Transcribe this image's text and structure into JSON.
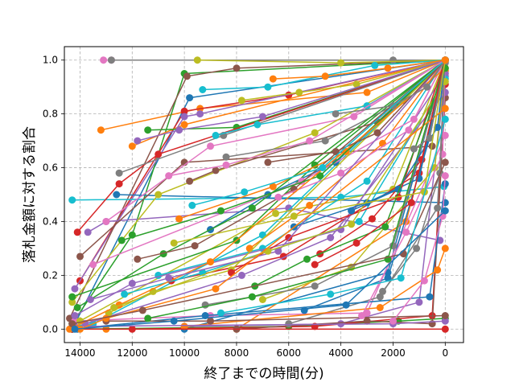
{
  "chart_data": {
    "type": "line",
    "title": "",
    "xlabel": "終了までの時間(分)",
    "ylabel": "落札金額に対する割合",
    "xlim": [
      14600,
      -700
    ],
    "ylim": [
      -0.05,
      1.05
    ],
    "x_inverted": true,
    "grid": true,
    "grid_style": "dashed",
    "legend": "none",
    "marker": "circle",
    "x_ticks": [
      14000,
      12000,
      10000,
      8000,
      6000,
      4000,
      2000,
      0
    ],
    "x_tick_labels": [
      "14000",
      "12000",
      "10000",
      "8000",
      "6000",
      "4000",
      "2000",
      "0"
    ],
    "y_ticks": [
      0.0,
      0.2,
      0.4,
      0.6,
      0.8,
      1.0
    ],
    "y_tick_labels": [
      "0.0",
      "0.2",
      "0.4",
      "0.6",
      "0.8",
      "1.0"
    ],
    "palette": [
      "#1f77b4",
      "#ff7f0e",
      "#2ca02c",
      "#d62728",
      "#9467bd",
      "#8c564b",
      "#e377c2",
      "#7f7f7f",
      "#bcbd22",
      "#17becf"
    ],
    "series": [
      {
        "x": [
          14300,
          9800,
          0
        ],
        "y": [
          0.0,
          0.86,
          1.0
        ]
      },
      {
        "x": [
          13200,
          9400,
          3000,
          0
        ],
        "y": [
          0.74,
          0.82,
          0.88,
          1.0
        ]
      },
      {
        "x": [
          14300,
          12000,
          10000,
          0
        ],
        "y": [
          0.02,
          0.35,
          0.95,
          1.0
        ]
      },
      {
        "x": [
          14000,
          10000,
          6000,
          0
        ],
        "y": [
          0.18,
          0.81,
          0.87,
          1.0
        ]
      },
      {
        "x": [
          14200,
          10000,
          9400,
          0
        ],
        "y": [
          0.15,
          0.79,
          0.8,
          1.0
        ]
      },
      {
        "x": [
          14400,
          9900,
          8000,
          0
        ],
        "y": [
          0.04,
          0.94,
          0.97,
          1.0
        ]
      },
      {
        "x": [
          13100,
          12800,
          0
        ],
        "y": [
          1.0,
          1.0,
          1.0
        ]
      },
      {
        "x": [
          12800,
          2000,
          0
        ],
        "y": [
          1.0,
          1.0,
          1.0
        ]
      },
      {
        "x": [
          9500,
          4000,
          0
        ],
        "y": [
          1.0,
          0.99,
          1.0
        ]
      },
      {
        "x": [
          14300,
          4000,
          50
        ],
        "y": [
          0.48,
          0.49,
          0.53
        ]
      },
      {
        "x": [
          12600,
          0
        ],
        "y": [
          0.5,
          0.47
        ]
      },
      {
        "x": [
          12000,
          10000,
          0
        ],
        "y": [
          0.68,
          0.76,
          1.0
        ]
      },
      {
        "x": [
          11400,
          8000,
          0
        ],
        "y": [
          0.74,
          0.75,
          1.0
        ]
      },
      {
        "x": [
          14100,
          12500,
          11000,
          0
        ],
        "y": [
          0.36,
          0.54,
          0.65,
          1.0
        ]
      },
      {
        "x": [
          13700,
          13000,
          6000,
          200
        ],
        "y": [
          0.36,
          0.4,
          0.45,
          0.33
        ]
      },
      {
        "x": [
          14000,
          10000,
          500
        ],
        "y": [
          0.27,
          0.62,
          0.68
        ]
      },
      {
        "x": [
          13000,
          9000,
          3500,
          0
        ],
        "y": [
          0.4,
          0.68,
          0.79,
          1.0
        ]
      },
      {
        "x": [
          12500,
          8500,
          0
        ],
        "y": [
          0.58,
          0.72,
          1.0
        ]
      },
      {
        "x": [
          14300,
          11000,
          5000,
          0
        ],
        "y": [
          0.1,
          0.5,
          0.73,
          1.0
        ]
      },
      {
        "x": [
          14300,
          13500,
          7000,
          0
        ],
        "y": [
          0.01,
          0.02,
          0.35,
          1.0
        ]
      },
      {
        "x": [
          14100,
          10000,
          2200,
          0
        ],
        "y": [
          0.0,
          0.0,
          0.21,
          1.0
        ]
      },
      {
        "x": [
          13000,
          8000,
          1500,
          0
        ],
        "y": [
          0.0,
          0.0,
          0.4,
          0.96
        ]
      },
      {
        "x": [
          14300,
          6000,
          1800,
          0
        ],
        "y": [
          0.0,
          0.01,
          0.03,
          0.04
        ]
      },
      {
        "x": [
          12000,
          5000,
          500,
          0
        ],
        "y": [
          0.0,
          0.01,
          0.05,
          0.91
        ]
      },
      {
        "x": [
          10000,
          4000,
          1000,
          0
        ],
        "y": [
          0.01,
          0.02,
          0.1,
          0.94
        ]
      },
      {
        "x": [
          8000,
          3000,
          500,
          0
        ],
        "y": [
          0.0,
          0.03,
          0.02,
          0.86
        ]
      },
      {
        "x": [
          14200,
          9000,
          3000,
          0
        ],
        "y": [
          0.03,
          0.05,
          0.06,
          0.72
        ]
      },
      {
        "x": [
          6000,
          2500,
          300,
          0
        ],
        "y": [
          0.02,
          0.12,
          0.45,
          1.0
        ]
      },
      {
        "x": [
          14000,
          6500,
          2000,
          0
        ],
        "y": [
          0.03,
          0.43,
          0.52,
          1.0
        ]
      },
      {
        "x": [
          11000,
          7000,
          3000,
          0
        ],
        "y": [
          0.2,
          0.3,
          0.55,
          1.0
        ]
      },
      {
        "x": [
          9000,
          6800,
          4200,
          0
        ],
        "y": [
          0.37,
          0.5,
          0.62,
          1.0
        ]
      },
      {
        "x": [
          7500,
          5200,
          2400,
          0
        ],
        "y": [
          0.3,
          0.46,
          0.69,
          1.0
        ]
      },
      {
        "x": [
          14300,
          8000,
          5000,
          0
        ],
        "y": [
          0.12,
          0.33,
          0.61,
          1.0
        ]
      },
      {
        "x": [
          10500,
          6200,
          1000,
          0
        ],
        "y": [
          0.18,
          0.27,
          0.58,
          1.0
        ]
      },
      {
        "x": [
          14200,
          12000,
          4000,
          0
        ],
        "y": [
          0.05,
          0.17,
          0.37,
          0.95
        ]
      },
      {
        "x": [
          9800,
          8800,
          2600,
          0
        ],
        "y": [
          0.55,
          0.59,
          0.77,
          1.0
        ]
      },
      {
        "x": [
          13500,
          5500,
          1200,
          0
        ],
        "y": [
          0.24,
          0.55,
          0.78,
          1.0
        ]
      },
      {
        "x": [
          8400,
          4600,
          1600,
          0
        ],
        "y": [
          0.64,
          0.7,
          0.85,
          1.0
        ]
      },
      {
        "x": [
          7000,
          3600,
          400,
          0
        ],
        "y": [
          0.11,
          0.23,
          0.6,
          1.0
        ]
      },
      {
        "x": [
          12300,
          9300,
          3300,
          0
        ],
        "y": [
          0.13,
          0.21,
          0.4,
          0.93
        ]
      },
      {
        "x": [
          5400,
          2200,
          600,
          0
        ],
        "y": [
          0.07,
          0.19,
          0.71,
          1.0
        ]
      },
      {
        "x": [
          10200,
          6600,
          3800,
          0
        ],
        "y": [
          0.41,
          0.53,
          0.66,
          1.0
        ]
      },
      {
        "x": [
          14100,
          10800,
          7400,
          0
        ],
        "y": [
          0.08,
          0.28,
          0.45,
          1.0
        ]
      },
      {
        "x": [
          4800,
          2800,
          900,
          0
        ],
        "y": [
          0.28,
          0.41,
          0.63,
          1.0
        ]
      },
      {
        "x": [
          13800,
          7800,
          4400,
          0
        ],
        "y": [
          0.02,
          0.2,
          0.34,
          0.88
        ]
      },
      {
        "x": [
          11800,
          9600,
          5800,
          0
        ],
        "y": [
          0.26,
          0.31,
          0.52,
          1.0
        ]
      },
      {
        "x": [
          6400,
          4000,
          1400,
          0
        ],
        "y": [
          0.49,
          0.58,
          0.74,
          1.0
        ]
      },
      {
        "x": [
          9200,
          5000,
          2000,
          0
        ],
        "y": [
          0.09,
          0.16,
          0.31,
          0.99
        ]
      },
      {
        "x": [
          12900,
          11200,
          8200,
          0
        ],
        "y": [
          0.06,
          0.14,
          0.22,
          1.0
        ]
      },
      {
        "x": [
          8800,
          7200,
          3000,
          0
        ],
        "y": [
          0.72,
          0.76,
          0.83,
          1.0
        ]
      },
      {
        "x": [
          14300,
          9200,
          600,
          0
        ],
        "y": [
          0.0,
          0.05,
          0.12,
          0.54
        ]
      },
      {
        "x": [
          10000,
          2500,
          300,
          0
        ],
        "y": [
          0.01,
          0.08,
          0.22,
          0.3
        ]
      },
      {
        "x": [
          12400,
          8600,
          4800,
          0
        ],
        "y": [
          0.33,
          0.44,
          0.57,
          1.0
        ]
      },
      {
        "x": [
          14300,
          0
        ],
        "y": [
          0.0,
          0.0
        ]
      },
      {
        "x": [
          14200,
          2000,
          0
        ],
        "y": [
          0.01,
          0.02,
          0.03
        ]
      },
      {
        "x": [
          13000,
          9000,
          0
        ],
        "y": [
          0.03,
          0.03,
          0.05
        ]
      },
      {
        "x": [
          3200,
          1500,
          100,
          0
        ],
        "y": [
          0.05,
          0.36,
          0.65,
          1.0
        ]
      },
      {
        "x": [
          2400,
          1100,
          200,
          0
        ],
        "y": [
          0.14,
          0.3,
          0.58,
          1.0
        ]
      },
      {
        "x": [
          7800,
          5600,
          3400,
          0
        ],
        "y": [
          0.85,
          0.88,
          0.91,
          1.0
        ]
      },
      {
        "x": [
          9300,
          6800,
          2700,
          0
        ],
        "y": [
          0.89,
          0.9,
          0.98,
          1.0
        ]
      },
      {
        "x": [
          5800,
          3000,
          1000,
          0
        ],
        "y": [
          0.38,
          0.47,
          0.56,
          1.0
        ]
      },
      {
        "x": [
          14400,
          12500,
          9000,
          0
        ],
        "y": [
          0.0,
          0.09,
          0.25,
          0.97
        ]
      },
      {
        "x": [
          11400,
          7400,
          2200,
          0
        ],
        "y": [
          0.04,
          0.12,
          0.26,
          1.0
        ]
      },
      {
        "x": [
          8200,
          6000,
          1800,
          0
        ],
        "y": [
          0.21,
          0.34,
          0.49,
          1.0
        ]
      },
      {
        "x": [
          13600,
          10600,
          6400,
          0
        ],
        "y": [
          0.11,
          0.19,
          0.29,
          1.0
        ]
      },
      {
        "x": [
          6800,
          4200,
          2600,
          0
        ],
        "y": [
          0.62,
          0.66,
          0.73,
          1.0
        ]
      },
      {
        "x": [
          10600,
          8400,
          5200,
          0
        ],
        "y": [
          0.57,
          0.61,
          0.7,
          1.0
        ]
      },
      {
        "x": [
          4200,
          2000,
          700,
          0
        ],
        "y": [
          0.8,
          0.83,
          0.9,
          1.0
        ]
      },
      {
        "x": [
          12700,
          6800,
          3600,
          0
        ],
        "y": [
          0.08,
          0.29,
          0.39,
          0.92
        ]
      },
      {
        "x": [
          9700,
          7700,
          4700,
          0
        ],
        "y": [
          0.46,
          0.51,
          0.6,
          1.0
        ]
      },
      {
        "x": [
          3600,
          1800,
          300,
          0
        ],
        "y": [
          0.44,
          0.52,
          0.75,
          1.0
        ]
      },
      {
        "x": [
          14000,
          13000,
          8800,
          0
        ],
        "y": [
          0.0,
          0.04,
          0.15,
          0.82
        ]
      },
      {
        "x": [
          7300,
          5300,
          2300,
          0
        ],
        "y": [
          0.16,
          0.26,
          0.38,
          0.97
        ]
      },
      {
        "x": [
          5000,
          3400,
          1300,
          0
        ],
        "y": [
          0.24,
          0.32,
          0.47,
          1.0
        ]
      },
      {
        "x": [
          11800,
          10200,
          7000,
          0
        ],
        "y": [
          0.7,
          0.74,
          0.79,
          1.0
        ]
      },
      {
        "x": [
          14300,
          11600,
          1600,
          0
        ],
        "y": [
          0.02,
          0.07,
          0.28,
          0.62
        ]
      },
      {
        "x": [
          2000,
          800,
          100,
          0
        ],
        "y": [
          0.03,
          0.18,
          0.42,
          0.57
        ]
      },
      {
        "x": [
          1200,
          600,
          0
        ],
        "y": [
          0.67,
          0.71,
          1.0
        ]
      },
      {
        "x": [
          10400,
          5800,
          800,
          0
        ],
        "y": [
          0.32,
          0.42,
          0.51,
          1.0
        ]
      },
      {
        "x": [
          8600,
          4400,
          1700,
          0
        ],
        "y": [
          0.06,
          0.13,
          0.19,
          0.78
        ]
      },
      {
        "x": [
          14200,
          10400,
          3800,
          0
        ],
        "y": [
          0.0,
          0.03,
          0.09,
          0.44
        ]
      },
      {
        "x": [
          6600,
          4600,
          2200,
          0
        ],
        "y": [
          0.93,
          0.94,
          0.97,
          1.0
        ]
      }
    ]
  }
}
